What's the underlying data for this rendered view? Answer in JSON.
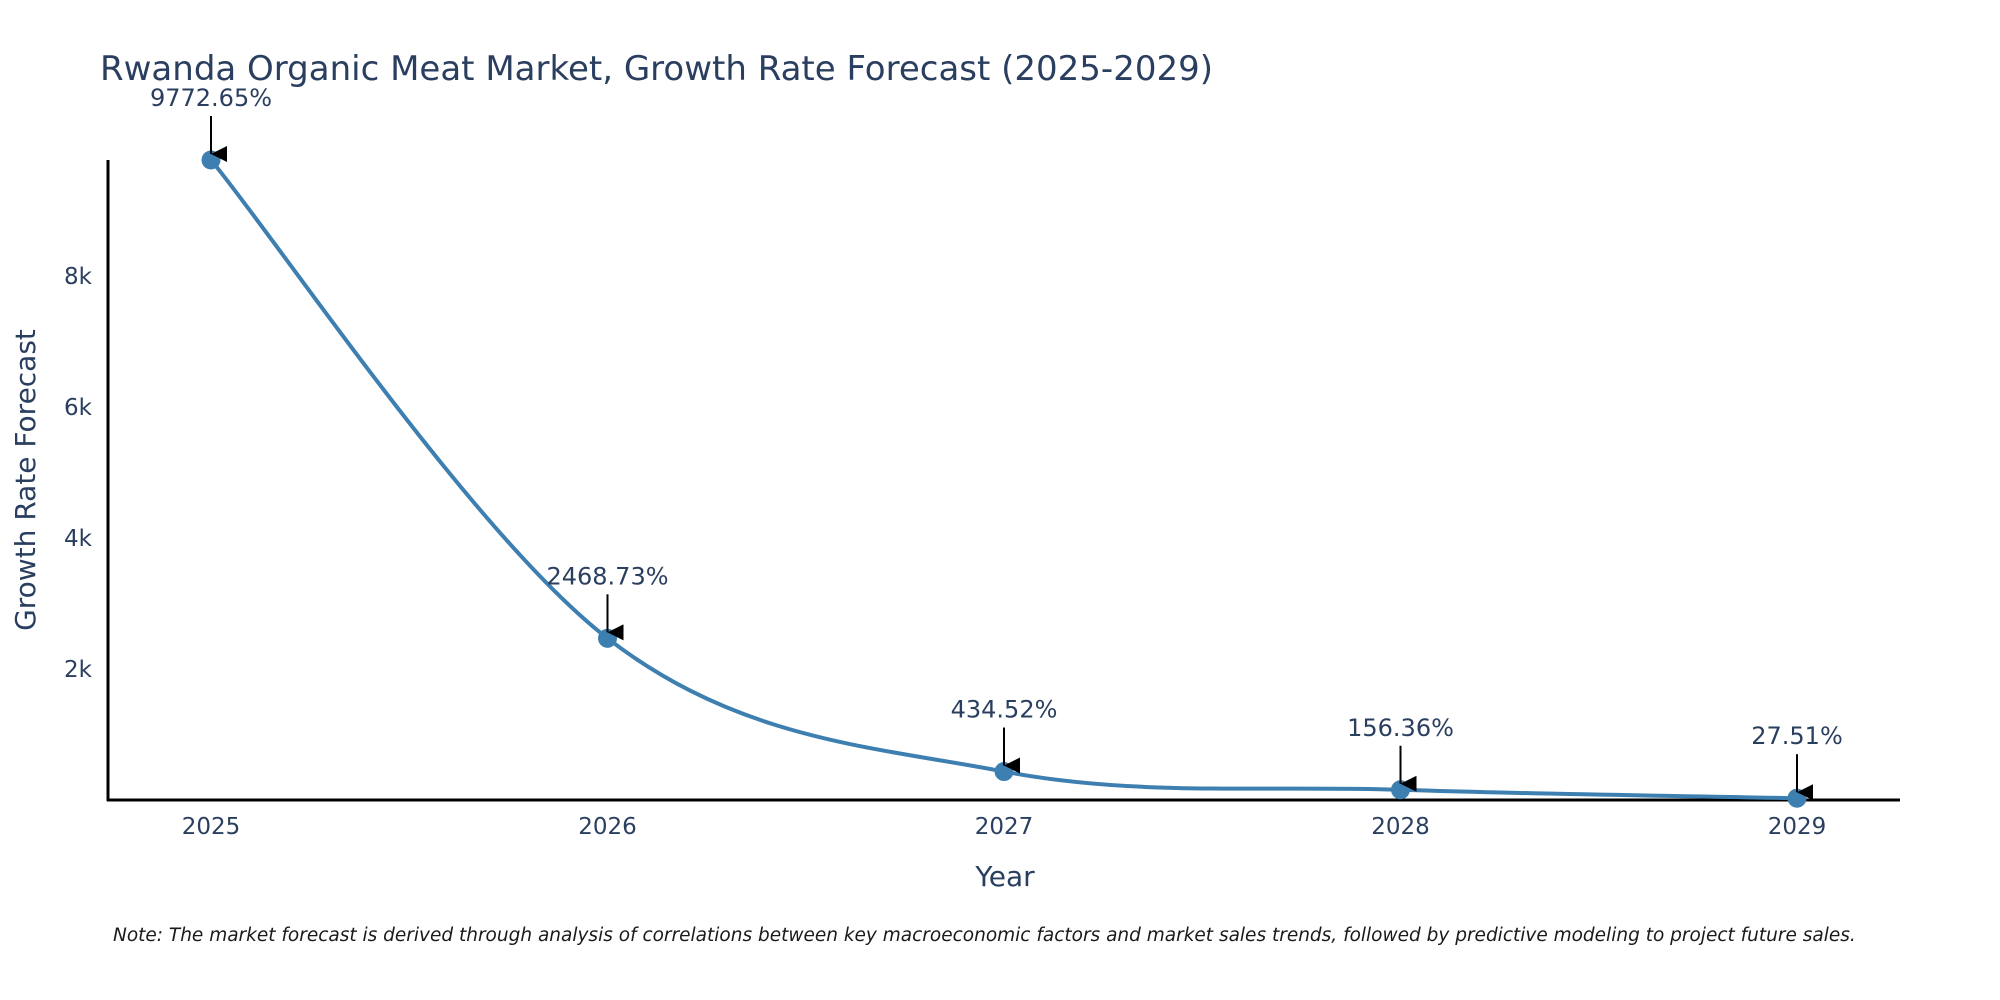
{
  "chart_data": {
    "type": "line",
    "title": "Rwanda Organic Meat Market, Growth Rate Forecast (2025-2029)",
    "xlabel": "Year",
    "ylabel": "Growth Rate Forecast",
    "categories": [
      "2025",
      "2026",
      "2027",
      "2028",
      "2029"
    ],
    "values": [
      9772.65,
      2468.73,
      434.52,
      156.36,
      27.51
    ],
    "data_labels": [
      "9772.65%",
      "2468.73%",
      "434.52%",
      "156.36%",
      "27.51%"
    ],
    "ylim": [
      0,
      9772.65
    ],
    "y_ticks": [
      2000,
      4000,
      6000,
      8000
    ],
    "y_tick_labels": [
      "2k",
      "4k",
      "6k",
      "8k"
    ],
    "line_color": "#3d7fb0",
    "axis_color": "#000000",
    "note": "Note: The market forecast is derived through analysis of correlations between key macroeconomic factors and market sales trends, followed by predictive modeling to project future sales."
  }
}
